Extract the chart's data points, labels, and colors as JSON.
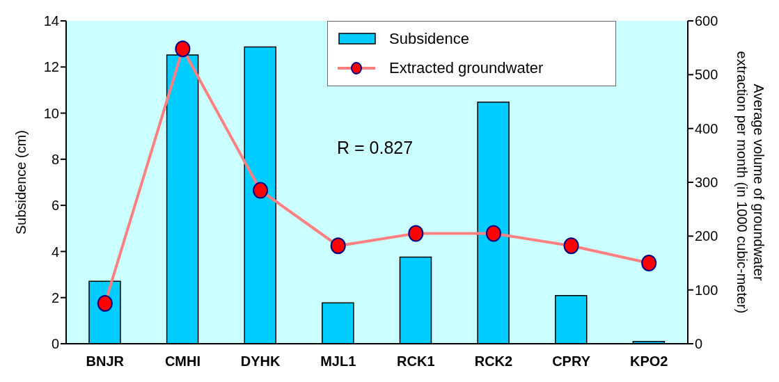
{
  "chart_data": {
    "type": "bar",
    "categories": [
      "BNJR",
      "CMHI",
      "DYHK",
      "MJL1",
      "RCK1",
      "RCK2",
      "CPRY",
      "KPO2"
    ],
    "series": [
      {
        "name": "Subsidence",
        "color": "#00ccff",
        "values": [
          2.71,
          12.52,
          12.87,
          1.77,
          3.76,
          10.48,
          2.09,
          0.1
        ]
      },
      {
        "name": "Extracted groundwater",
        "type": "line",
        "axis": "y2",
        "color": "#ff8080",
        "values": [
          75,
          548,
          285,
          182,
          205,
          205,
          182,
          150
        ]
      }
    ],
    "ylabel": "Subsidence (cm)",
    "y2label": "Average volume of groundwater extraction per month (in 1000 cubic-meter)",
    "ylim": [
      0,
      14
    ],
    "yticks": [
      0,
      2,
      4,
      6,
      8,
      10,
      12,
      14
    ],
    "y2lim": [
      0,
      600
    ],
    "y2ticks": [
      0,
      100,
      200,
      300,
      400,
      500,
      600
    ],
    "annotations": [
      "R = 0.827"
    ],
    "legend": "top right",
    "grid": false,
    "marker": "circle",
    "line_style": "solid"
  }
}
